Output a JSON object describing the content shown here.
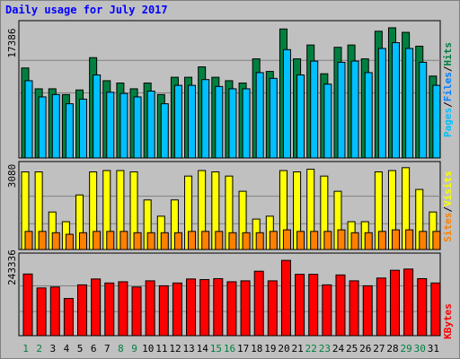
{
  "title": "Daily usage for July 2017",
  "colors": {
    "background": "#c0c0c0",
    "pages": "#00c0ff",
    "files": "#0080ff",
    "hits": "#008040",
    "visits": "#ffff00",
    "sites": "#ff8000",
    "kbytes": "#ff0000",
    "title": "#0000ff",
    "weekend_day": "#008040",
    "weekday": "#000000"
  },
  "chart_data": [
    {
      "type": "bar",
      "panel": "top",
      "y_max_label": "17386",
      "ylim": [
        0,
        17386
      ],
      "legend_right": [
        "Pages",
        "/",
        "Files",
        "/",
        "Hits"
      ],
      "categories": [
        "1",
        "2",
        "3",
        "4",
        "5",
        "6",
        "7",
        "8",
        "9",
        "10",
        "11",
        "12",
        "13",
        "14",
        "15",
        "16",
        "17",
        "18",
        "19",
        "20",
        "21",
        "22",
        "23",
        "24",
        "25",
        "26",
        "27",
        "28",
        "29",
        "30",
        "31"
      ],
      "weekend_days": [
        "1",
        "2",
        "8",
        "9",
        "15",
        "16",
        "22",
        "23",
        "29",
        "30"
      ],
      "series": [
        {
          "name": "Hits",
          "values": [
            12020,
            9240,
            9240,
            8470,
            9080,
            13400,
            10320,
            10010,
            9240,
            10010,
            8470,
            10780,
            10780,
            12170,
            10780,
            10320,
            10010,
            13240,
            11560,
            17230,
            13240,
            15090,
            11250,
            14780,
            15090,
            13240,
            16930,
            17390,
            16780,
            14930,
            10940
          ]
        },
        {
          "name": "Files",
          "values": [
            10320,
            8160,
            8470,
            7240,
            7860,
            11090,
            8780,
            8620,
            8160,
            8930,
            7240,
            9700,
            9700,
            10470,
            9550,
            9240,
            9240,
            11400,
            10630,
            14470,
            11090,
            12940,
            9860,
            12780,
            12940,
            11400,
            14630,
            15400,
            14630,
            12780,
            9700
          ]
        },
        {
          "name": "Pages",
          "values": [
            9240,
            7090,
            7550,
            5860,
            6780,
            9860,
            7710,
            7710,
            7090,
            8000,
            5860,
            8780,
            8780,
            9400,
            8620,
            8160,
            8160,
            9700,
            9860,
            13240,
            9550,
            11710,
            8470,
            11560,
            11710,
            10170,
            12940,
            13710,
            13090,
            11400,
            8780
          ]
        }
      ]
    },
    {
      "type": "bar",
      "panel": "middle",
      "y_max_label": "3080",
      "ylim": [
        0,
        3080
      ],
      "legend_right": [
        "Sites",
        "/",
        "Visits"
      ],
      "categories": [
        "1",
        "2",
        "3",
        "4",
        "5",
        "6",
        "7",
        "8",
        "9",
        "10",
        "11",
        "12",
        "13",
        "14",
        "15",
        "16",
        "17",
        "18",
        "19",
        "20",
        "21",
        "22",
        "23",
        "24",
        "25",
        "26",
        "27",
        "28",
        "29",
        "30",
        "31"
      ],
      "series": [
        {
          "name": "Visits",
          "values": [
            2960,
            2960,
            1430,
            1060,
            2080,
            2960,
            3010,
            3010,
            2960,
            1890,
            1270,
            1890,
            2800,
            3010,
            2960,
            2800,
            2220,
            1160,
            1270,
            3010,
            2960,
            3060,
            2800,
            2220,
            1060,
            1060,
            2960,
            3010,
            3120,
            2290,
            1430
          ]
        },
        {
          "name": "Sites",
          "values": [
            690,
            690,
            640,
            580,
            640,
            690,
            690,
            690,
            640,
            640,
            640,
            640,
            690,
            690,
            690,
            640,
            640,
            640,
            690,
            750,
            690,
            690,
            690,
            750,
            640,
            640,
            690,
            750,
            750,
            690,
            690
          ]
        }
      ]
    },
    {
      "type": "bar",
      "panel": "bottom",
      "y_max_label": "243336",
      "ylim": [
        0,
        243336
      ],
      "legend_right": [
        "KBytes"
      ],
      "categories": [
        "1",
        "2",
        "3",
        "4",
        "5",
        "6",
        "7",
        "8",
        "9",
        "10",
        "11",
        "12",
        "13",
        "14",
        "15",
        "16",
        "17",
        "18",
        "19",
        "20",
        "21",
        "22",
        "23",
        "24",
        "25",
        "26",
        "27",
        "28",
        "29",
        "30",
        "31"
      ],
      "series": [
        {
          "name": "KBytes",
          "values": [
            199000,
            154000,
            157000,
            120000,
            164000,
            183000,
            170000,
            174000,
            157000,
            177000,
            161000,
            170000,
            183000,
            181000,
            184000,
            174000,
            177000,
            208000,
            177000,
            243000,
            198000,
            198000,
            164000,
            196000,
            177000,
            161000,
            186000,
            211000,
            215000,
            184000,
            170000
          ]
        }
      ]
    }
  ]
}
